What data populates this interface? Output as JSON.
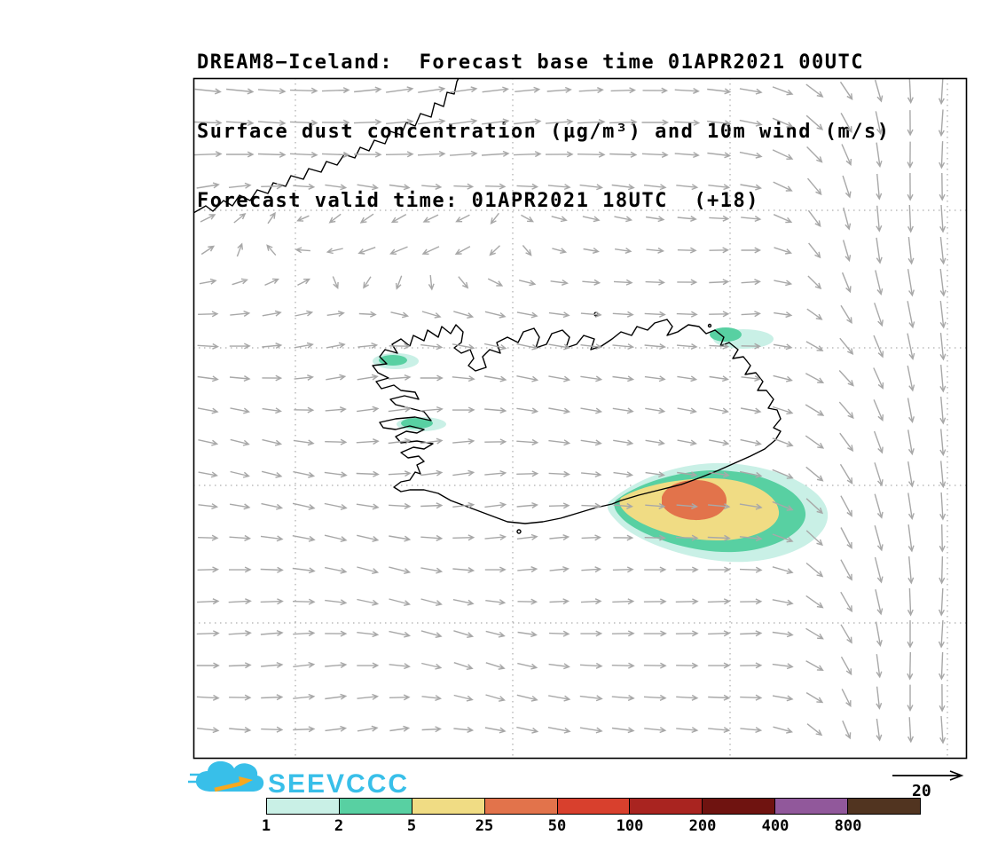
{
  "titles": {
    "line1": "DREAM8−Iceland:  Forecast base time 01APR2021 00UTC",
    "line2": "Surface dust concentration (µg/m³) and 10m wind (m/s)",
    "line3": "Forecast valid time: 01APR2021 18UTC  (+18)"
  },
  "logo": {
    "text": "SEEVCCC"
  },
  "wind": {
    "ref_label": "20",
    "grid_step": 36,
    "color": "#a8a8a8"
  },
  "colors": {
    "level_1": "#c9f0e6",
    "level_2": "#58d0a2",
    "level_5": "#f0dc84",
    "level_25": "#e2734b",
    "coastline": "#000000",
    "graticule": "#9a9a9a",
    "logo_cyan": "#38bfe9",
    "logo_yellow": "#f6a81e"
  },
  "colorbar": {
    "labels": [
      "1",
      "2",
      "5",
      "25",
      "50",
      "100",
      "200",
      "400",
      "800"
    ],
    "colors": [
      "#c9f0e6",
      "#58d0a2",
      "#f0dc84",
      "#e2734b",
      "#d8402d",
      "#a92420",
      "#6f1310",
      "#91589b",
      "#513420"
    ]
  }
}
